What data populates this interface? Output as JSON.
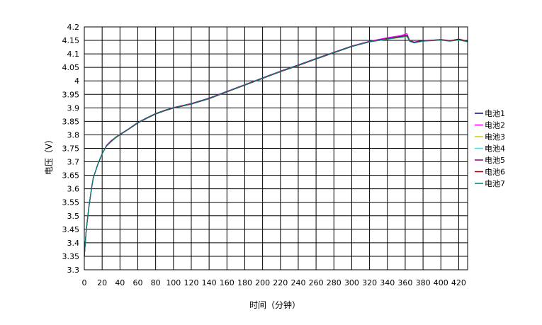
{
  "chart_data": {
    "type": "line",
    "title": "",
    "xlabel": "时间（分钟）",
    "ylabel": "电压（V）",
    "xlim": [
      0,
      430
    ],
    "ylim": [
      3.3,
      4.2
    ],
    "x_ticks": [
      0,
      20,
      40,
      60,
      80,
      100,
      120,
      140,
      160,
      180,
      200,
      220,
      240,
      260,
      280,
      300,
      320,
      340,
      360,
      380,
      400,
      420
    ],
    "y_ticks": [
      3.3,
      3.35,
      3.4,
      3.45,
      3.5,
      3.55,
      3.6,
      3.65,
      3.7,
      3.75,
      3.8,
      3.85,
      3.9,
      3.95,
      4.0,
      4.05,
      4.1,
      4.15,
      4.2
    ],
    "y_tick_labels": [
      "3.3",
      "3.35",
      "3.4",
      "3.45",
      "3.5",
      "3.55",
      "3.6",
      "3.65",
      "3.7",
      "3.75",
      "3.8",
      "3.85",
      "3.9",
      "3.95",
      "4",
      "4.05",
      "4.1",
      "4.15",
      "4.2"
    ],
    "grid": true,
    "legend": "right",
    "x": [
      0,
      2,
      5,
      8,
      10,
      15,
      20,
      25,
      30,
      35,
      40,
      50,
      60,
      70,
      80,
      90,
      100,
      120,
      140,
      160,
      180,
      200,
      220,
      240,
      260,
      280,
      300,
      320,
      340,
      355,
      362,
      365,
      370,
      380,
      390,
      400,
      410,
      420,
      430
    ],
    "series": [
      {
        "name": "电池1",
        "color": "#000080",
        "values": [
          3.35,
          3.44,
          3.53,
          3.6,
          3.64,
          3.69,
          3.73,
          3.76,
          3.775,
          3.79,
          3.8,
          3.822,
          3.845,
          3.862,
          3.878,
          3.89,
          3.9,
          3.915,
          3.935,
          3.96,
          3.985,
          4.01,
          4.035,
          4.058,
          4.082,
          4.105,
          4.128,
          4.145,
          4.155,
          4.163,
          4.166,
          4.148,
          4.142,
          4.148,
          4.15,
          4.152,
          4.148,
          4.152,
          4.146
        ]
      },
      {
        "name": "电池2",
        "color": "#ff00ff",
        "values": [
          3.35,
          3.44,
          3.53,
          3.6,
          3.64,
          3.69,
          3.73,
          3.762,
          3.778,
          3.79,
          3.802,
          3.823,
          3.846,
          3.863,
          3.879,
          3.891,
          3.901,
          3.916,
          3.936,
          3.961,
          3.986,
          4.011,
          4.036,
          4.059,
          4.083,
          4.106,
          4.129,
          4.147,
          4.16,
          4.168,
          4.175,
          4.15,
          4.144,
          4.149,
          4.151,
          4.153,
          4.149,
          4.153,
          4.147
        ]
      },
      {
        "name": "电池3",
        "color": "#cccc00",
        "values": [
          3.35,
          3.44,
          3.53,
          3.6,
          3.64,
          3.69,
          3.73,
          3.758,
          3.774,
          3.788,
          3.8,
          3.821,
          3.844,
          3.861,
          3.877,
          3.889,
          3.899,
          3.914,
          3.934,
          3.959,
          3.984,
          4.009,
          4.034,
          4.057,
          4.081,
          4.104,
          4.127,
          4.144,
          4.154,
          4.161,
          4.164,
          4.146,
          4.141,
          4.147,
          4.149,
          4.151,
          4.147,
          4.151,
          4.145
        ]
      },
      {
        "name": "电池4",
        "color": "#00ffff",
        "values": [
          3.35,
          3.44,
          3.53,
          3.6,
          3.64,
          3.69,
          3.73,
          3.76,
          3.776,
          3.79,
          3.801,
          3.822,
          3.845,
          3.862,
          3.878,
          3.89,
          3.9,
          3.915,
          3.935,
          3.96,
          3.985,
          4.01,
          4.035,
          4.058,
          4.082,
          4.105,
          4.128,
          4.145,
          4.155,
          4.162,
          4.165,
          4.147,
          4.142,
          4.148,
          4.15,
          4.152,
          4.148,
          4.152,
          4.146
        ]
      },
      {
        "name": "电池5",
        "color": "#800080",
        "values": [
          3.35,
          3.44,
          3.53,
          3.6,
          3.64,
          3.69,
          3.73,
          3.761,
          3.777,
          3.791,
          3.802,
          3.823,
          3.846,
          3.863,
          3.879,
          3.891,
          3.901,
          3.916,
          3.936,
          3.961,
          3.986,
          4.011,
          4.036,
          4.059,
          4.083,
          4.106,
          4.129,
          4.146,
          4.157,
          4.165,
          4.17,
          4.149,
          4.143,
          4.149,
          4.151,
          4.153,
          4.149,
          4.154,
          4.148
        ]
      },
      {
        "name": "电池6",
        "color": "#800000",
        "values": [
          3.35,
          3.44,
          3.53,
          3.6,
          3.64,
          3.69,
          3.73,
          3.759,
          3.775,
          3.789,
          3.8,
          3.821,
          3.844,
          3.861,
          3.877,
          3.889,
          3.899,
          3.914,
          3.934,
          3.959,
          3.984,
          4.009,
          4.034,
          4.057,
          4.081,
          4.104,
          4.127,
          4.145,
          4.156,
          4.163,
          4.167,
          4.148,
          4.142,
          4.148,
          4.15,
          4.152,
          4.148,
          4.155,
          4.147
        ]
      },
      {
        "name": "电池7",
        "color": "#008080",
        "values": [
          3.35,
          3.44,
          3.53,
          3.6,
          3.64,
          3.69,
          3.73,
          3.76,
          3.776,
          3.79,
          3.801,
          3.822,
          3.845,
          3.862,
          3.878,
          3.89,
          3.9,
          3.915,
          3.935,
          3.96,
          3.985,
          4.01,
          4.035,
          4.058,
          4.082,
          4.105,
          4.128,
          4.145,
          4.155,
          4.162,
          4.166,
          4.147,
          4.141,
          4.147,
          4.149,
          4.151,
          4.147,
          4.152,
          4.145
        ]
      }
    ]
  }
}
